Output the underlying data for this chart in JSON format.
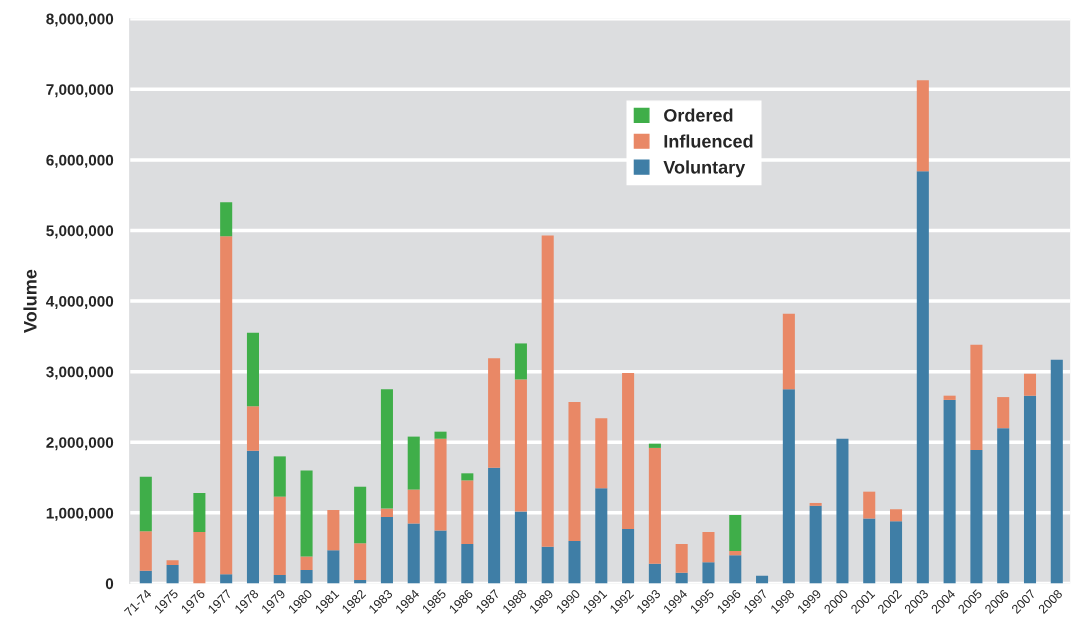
{
  "chart_data": {
    "type": "bar",
    "stacked": true,
    "ylabel": "Volume",
    "categories": [
      "71-74",
      "1975",
      "1976",
      "1977",
      "1978",
      "1979",
      "1980",
      "1981",
      "1982",
      "1983",
      "1984",
      "1985",
      "1986",
      "1987",
      "1988",
      "1989",
      "1990",
      "1991",
      "1992",
      "1993",
      "1994",
      "1995",
      "1996",
      "1997",
      "1998",
      "1999",
      "2000",
      "2001",
      "2002",
      "2003",
      "2004",
      "2005",
      "2006",
      "2007",
      "2008"
    ],
    "series": [
      {
        "name": "Voluntary",
        "color": "#3f7ea6",
        "values": [
          180000,
          260000,
          0,
          130000,
          1880000,
          120000,
          190000,
          470000,
          50000,
          940000,
          850000,
          750000,
          560000,
          1640000,
          1020000,
          520000,
          600000,
          1350000,
          770000,
          280000,
          150000,
          300000,
          400000,
          110000,
          2750000,
          1100000,
          2050000,
          920000,
          880000,
          5840000,
          2600000,
          1890000,
          2200000,
          2660000,
          3170000
        ]
      },
      {
        "name": "Influenced",
        "color": "#e98866",
        "values": [
          560000,
          70000,
          730000,
          4790000,
          630000,
          1110000,
          190000,
          570000,
          520000,
          120000,
          480000,
          1300000,
          900000,
          1550000,
          1870000,
          4410000,
          1970000,
          990000,
          2210000,
          1640000,
          410000,
          430000,
          60000,
          0,
          1070000,
          40000,
          0,
          380000,
          170000,
          1290000,
          60000,
          1490000,
          440000,
          310000,
          0
        ]
      },
      {
        "name": "Ordered",
        "color": "#3fae49",
        "values": [
          770000,
          0,
          550000,
          480000,
          1040000,
          570000,
          1220000,
          0,
          800000,
          1690000,
          750000,
          100000,
          100000,
          0,
          510000,
          0,
          0,
          0,
          0,
          60000,
          0,
          0,
          510000,
          0,
          0,
          0,
          0,
          0,
          0,
          0,
          0,
          0,
          0,
          0,
          0
        ]
      }
    ],
    "ylim": [
      0,
      8000000
    ],
    "yticks": [
      0,
      {
        "value": 1000000,
        "label": "1,000,000"
      },
      {
        "value": 2000000,
        "label": "2,000,000"
      },
      {
        "value": 3000000,
        "label": "3,000,000"
      },
      {
        "value": 4000000,
        "label": "4,000,000"
      },
      {
        "value": 5000000,
        "label": "5,000,000"
      },
      {
        "value": 6000000,
        "label": "6,000,000"
      },
      {
        "value": 7000000,
        "label": "7,000,000"
      },
      {
        "value": 8000000,
        "label": "8,000,000"
      }
    ],
    "grid": "y",
    "legend": "top"
  }
}
